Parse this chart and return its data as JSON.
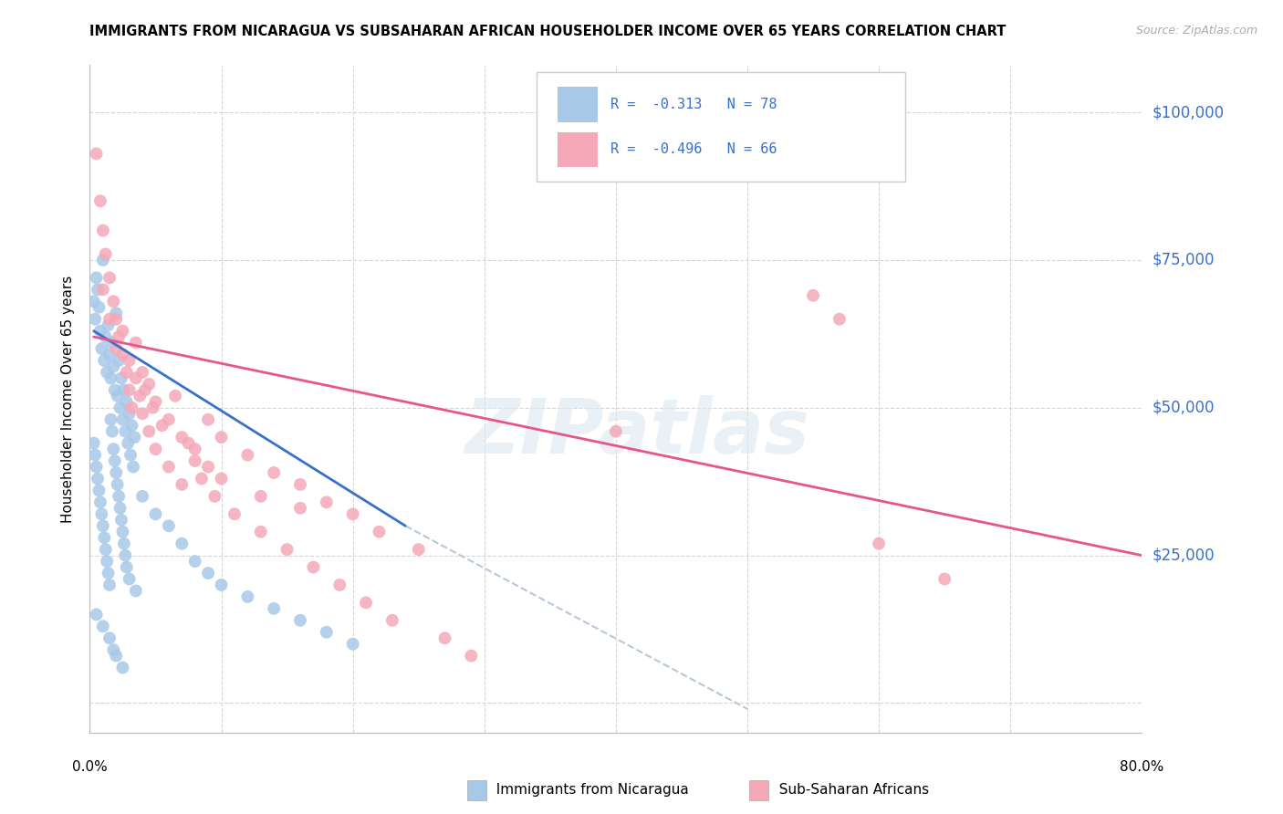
{
  "title": "IMMIGRANTS FROM NICARAGUA VS SUBSAHARAN AFRICAN HOUSEHOLDER INCOME OVER 65 YEARS CORRELATION CHART",
  "source": "Source: ZipAtlas.com",
  "ylabel": "Householder Income Over 65 years",
  "yticks": [
    0,
    25000,
    50000,
    75000,
    100000
  ],
  "ytick_labels": [
    "",
    "$25,000",
    "$50,000",
    "$75,000",
    "$100,000"
  ],
  "xlim": [
    0.0,
    0.8
  ],
  "ylim": [
    -5000,
    108000
  ],
  "color_nicaragua": "#a8c8e8",
  "color_subsaharan": "#f4a8b8",
  "color_line_nicaragua": "#3a6fcc",
  "color_line_subsaharan": "#e8558a",
  "color_line_dashed": "#b8c8d8",
  "color_ytick": "#3a6fcc",
  "watermark": "ZIPatlas",
  "nic_line_x0": 0.003,
  "nic_line_y0": 63000,
  "nic_line_x1": 0.24,
  "nic_line_y1": 30000,
  "dash_line_x0": 0.24,
  "dash_line_y0": 30000,
  "dash_line_x1": 0.5,
  "dash_line_y1": -1000,
  "sub_line_x0": 0.003,
  "sub_line_y0": 62000,
  "sub_line_x1": 0.8,
  "sub_line_y1": 25000,
  "nicaragua_points": [
    [
      0.003,
      68000
    ],
    [
      0.004,
      65000
    ],
    [
      0.005,
      72000
    ],
    [
      0.006,
      70000
    ],
    [
      0.007,
      67000
    ],
    [
      0.008,
      63000
    ],
    [
      0.009,
      60000
    ],
    [
      0.01,
      75000
    ],
    [
      0.011,
      58000
    ],
    [
      0.012,
      62000
    ],
    [
      0.013,
      56000
    ],
    [
      0.014,
      64000
    ],
    [
      0.015,
      59000
    ],
    [
      0.016,
      55000
    ],
    [
      0.017,
      61000
    ],
    [
      0.018,
      57000
    ],
    [
      0.019,
      53000
    ],
    [
      0.02,
      66000
    ],
    [
      0.021,
      52000
    ],
    [
      0.022,
      58000
    ],
    [
      0.023,
      50000
    ],
    [
      0.024,
      55000
    ],
    [
      0.025,
      48000
    ],
    [
      0.026,
      53000
    ],
    [
      0.027,
      46000
    ],
    [
      0.028,
      51000
    ],
    [
      0.029,
      44000
    ],
    [
      0.03,
      49000
    ],
    [
      0.031,
      42000
    ],
    [
      0.032,
      47000
    ],
    [
      0.033,
      40000
    ],
    [
      0.034,
      45000
    ],
    [
      0.003,
      44000
    ],
    [
      0.004,
      42000
    ],
    [
      0.005,
      40000
    ],
    [
      0.006,
      38000
    ],
    [
      0.007,
      36000
    ],
    [
      0.008,
      34000
    ],
    [
      0.009,
      32000
    ],
    [
      0.01,
      30000
    ],
    [
      0.011,
      28000
    ],
    [
      0.012,
      26000
    ],
    [
      0.013,
      24000
    ],
    [
      0.014,
      22000
    ],
    [
      0.015,
      20000
    ],
    [
      0.016,
      48000
    ],
    [
      0.017,
      46000
    ],
    [
      0.018,
      43000
    ],
    [
      0.019,
      41000
    ],
    [
      0.02,
      39000
    ],
    [
      0.021,
      37000
    ],
    [
      0.022,
      35000
    ],
    [
      0.023,
      33000
    ],
    [
      0.024,
      31000
    ],
    [
      0.025,
      29000
    ],
    [
      0.026,
      27000
    ],
    [
      0.027,
      25000
    ],
    [
      0.028,
      23000
    ],
    [
      0.03,
      21000
    ],
    [
      0.035,
      19000
    ],
    [
      0.04,
      35000
    ],
    [
      0.05,
      32000
    ],
    [
      0.06,
      30000
    ],
    [
      0.07,
      27000
    ],
    [
      0.08,
      24000
    ],
    [
      0.09,
      22000
    ],
    [
      0.1,
      20000
    ],
    [
      0.12,
      18000
    ],
    [
      0.14,
      16000
    ],
    [
      0.16,
      14000
    ],
    [
      0.18,
      12000
    ],
    [
      0.2,
      10000
    ],
    [
      0.005,
      15000
    ],
    [
      0.01,
      13000
    ],
    [
      0.015,
      11000
    ],
    [
      0.018,
      9000
    ],
    [
      0.02,
      8000
    ],
    [
      0.025,
      6000
    ]
  ],
  "subsaharan_points": [
    [
      0.005,
      93000
    ],
    [
      0.008,
      85000
    ],
    [
      0.01,
      80000
    ],
    [
      0.012,
      76000
    ],
    [
      0.015,
      72000
    ],
    [
      0.018,
      68000
    ],
    [
      0.02,
      65000
    ],
    [
      0.022,
      62000
    ],
    [
      0.025,
      59000
    ],
    [
      0.028,
      56000
    ],
    [
      0.03,
      53000
    ],
    [
      0.032,
      50000
    ],
    [
      0.035,
      55000
    ],
    [
      0.038,
      52000
    ],
    [
      0.04,
      49000
    ],
    [
      0.042,
      53000
    ],
    [
      0.045,
      46000
    ],
    [
      0.048,
      50000
    ],
    [
      0.05,
      43000
    ],
    [
      0.055,
      47000
    ],
    [
      0.06,
      40000
    ],
    [
      0.065,
      52000
    ],
    [
      0.07,
      37000
    ],
    [
      0.075,
      44000
    ],
    [
      0.08,
      41000
    ],
    [
      0.085,
      38000
    ],
    [
      0.09,
      48000
    ],
    [
      0.095,
      35000
    ],
    [
      0.1,
      45000
    ],
    [
      0.11,
      32000
    ],
    [
      0.12,
      42000
    ],
    [
      0.13,
      29000
    ],
    [
      0.14,
      39000
    ],
    [
      0.15,
      26000
    ],
    [
      0.16,
      37000
    ],
    [
      0.17,
      23000
    ],
    [
      0.18,
      34000
    ],
    [
      0.19,
      20000
    ],
    [
      0.2,
      32000
    ],
    [
      0.21,
      17000
    ],
    [
      0.22,
      29000
    ],
    [
      0.23,
      14000
    ],
    [
      0.25,
      26000
    ],
    [
      0.27,
      11000
    ],
    [
      0.29,
      8000
    ],
    [
      0.01,
      70000
    ],
    [
      0.015,
      65000
    ],
    [
      0.02,
      60000
    ],
    [
      0.025,
      63000
    ],
    [
      0.03,
      58000
    ],
    [
      0.035,
      61000
    ],
    [
      0.04,
      56000
    ],
    [
      0.045,
      54000
    ],
    [
      0.05,
      51000
    ],
    [
      0.06,
      48000
    ],
    [
      0.07,
      45000
    ],
    [
      0.08,
      43000
    ],
    [
      0.09,
      40000
    ],
    [
      0.1,
      38000
    ],
    [
      0.13,
      35000
    ],
    [
      0.16,
      33000
    ],
    [
      0.4,
      46000
    ],
    [
      0.55,
      69000
    ],
    [
      0.57,
      65000
    ],
    [
      0.6,
      27000
    ],
    [
      0.65,
      21000
    ]
  ]
}
